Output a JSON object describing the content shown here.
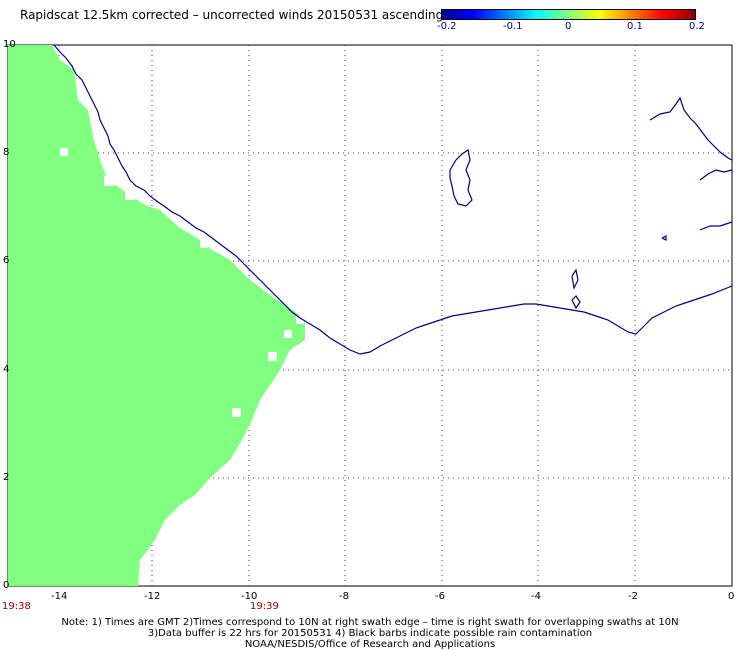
{
  "header": {
    "title": "Rapidscat 12.5km corrected – uncorrected winds 20150531 ascending"
  },
  "colorbar": {
    "colors": [
      "#00008b",
      "#0000ff",
      "#0080ff",
      "#00ffff",
      "#80ff80",
      "#ffff00",
      "#ff8000",
      "#ff0000",
      "#8b0000"
    ],
    "labels": [
      "-0.2",
      "-0.1",
      "0",
      "0.1",
      "0.2"
    ]
  },
  "axes": {
    "y_labels": [
      "0",
      "2",
      "4",
      "6",
      "8",
      "10"
    ],
    "x_labels": [
      "-14",
      "-12",
      "-10",
      "-8",
      "-6",
      "-4",
      "-2",
      "0"
    ],
    "time_labels": [
      "19:38",
      "19:39"
    ]
  },
  "legend_swath_color": "#80ff80",
  "coast_color": "#000080",
  "notes": {
    "line1": "Note: 1) Times are GMT 2)Times correspond to 10N at right swath edge – time is right swath for overlapping swaths at 10N",
    "line2": "3)Data buffer is 22 hrs for 20150531 4) Black barbs indicate possible rain contamination",
    "line3": "NOAA/NESDIS/Office of Research and Applications"
  }
}
